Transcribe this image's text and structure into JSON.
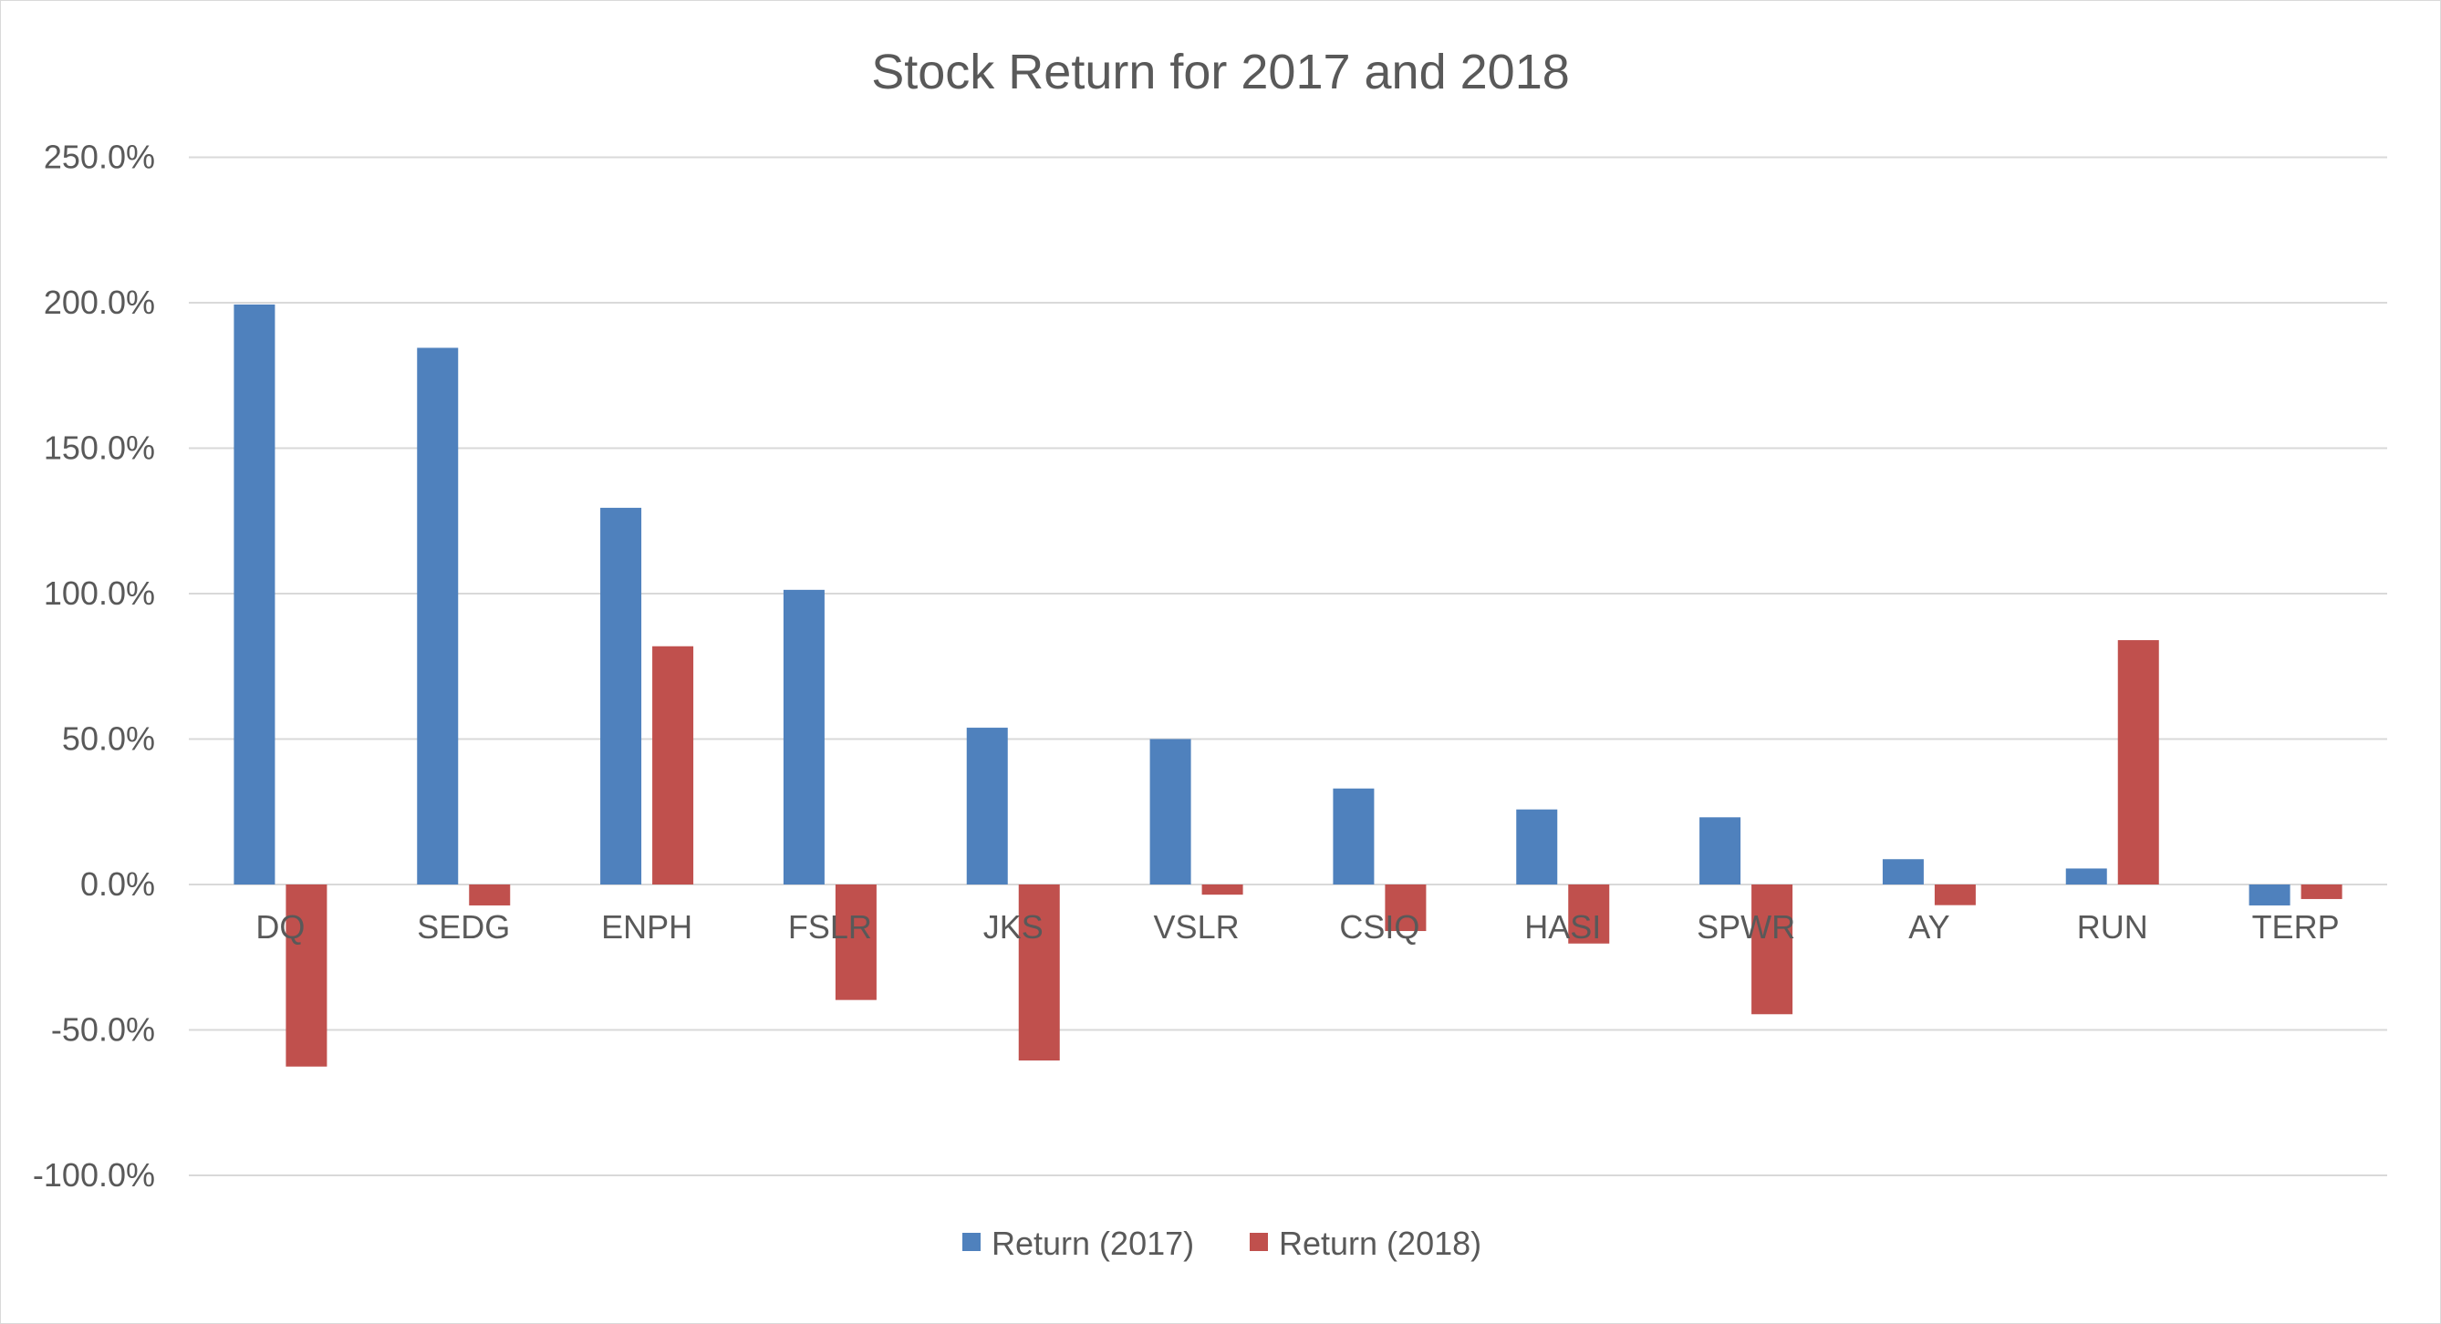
{
  "chart_data": {
    "type": "bar",
    "title": "Stock Return for 2017 and 2018",
    "xlabel": "",
    "ylabel": "",
    "ylim": [
      -100,
      250
    ],
    "ytick_step": 50,
    "ytick_format": "percent_1dp",
    "grid": true,
    "legend_position": "bottom",
    "categories": [
      "DQ",
      "SEDG",
      "ENPH",
      "FSLR",
      "JKS",
      "VSLR",
      "CSIQ",
      "HASI",
      "SPWR",
      "AY",
      "RUN",
      "TERP"
    ],
    "series": [
      {
        "name": "Return (2017)",
        "color": "#4f81bd",
        "values": [
          199.4,
          184.5,
          129.5,
          101.3,
          53.9,
          50.0,
          33.0,
          25.8,
          23.1,
          8.7,
          5.5,
          -7.2
        ]
      },
      {
        "name": "Return (2018)",
        "color": "#c0504d",
        "values": [
          -62.6,
          -7.2,
          81.9,
          -39.7,
          -60.5,
          -3.5,
          -16.0,
          -20.3,
          -44.6,
          -7.1,
          84.0,
          -5.0
        ]
      }
    ]
  }
}
